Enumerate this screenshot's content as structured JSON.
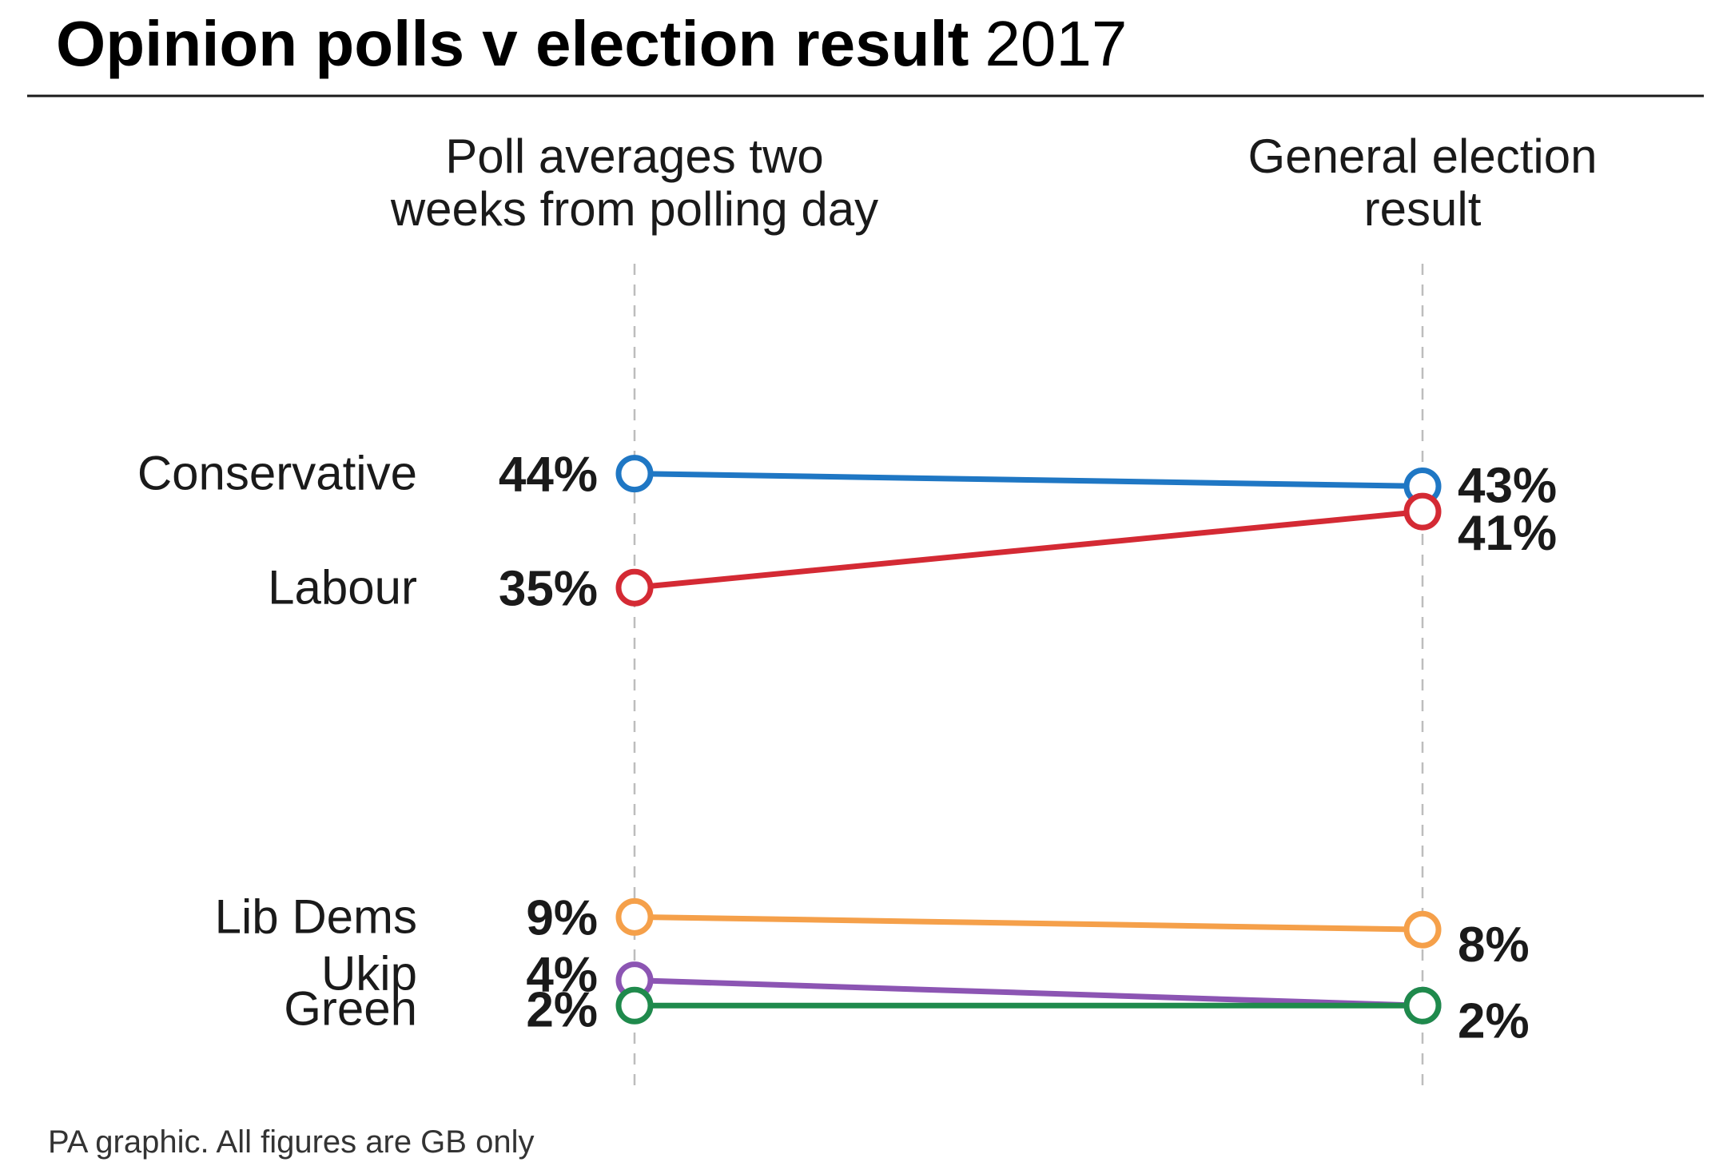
{
  "header": {
    "title_main": "Opinion polls v election result",
    "title_year": "2017"
  },
  "footer": {
    "source": "PA graphic. All figures are GB only"
  },
  "chart_data": {
    "type": "slope",
    "title": "Opinion polls v election result 2017",
    "columns": [
      [
        "Poll averages two",
        "weeks from polling day"
      ],
      [
        "General election",
        "result"
      ]
    ],
    "unit": "%",
    "series": [
      {
        "name": "Conservative",
        "values": [
          44,
          43
        ],
        "labels": [
          "44%",
          "43%"
        ],
        "color": "#1f77c4"
      },
      {
        "name": "Labour",
        "values": [
          35,
          41
        ],
        "labels": [
          "35%",
          "41%"
        ],
        "color": "#d42a34"
      },
      {
        "name": "Lib Dems",
        "values": [
          9,
          8
        ],
        "labels": [
          "9%",
          "8%"
        ],
        "color": "#f5a04a"
      },
      {
        "name": "Ukip",
        "values": [
          4,
          2
        ],
        "labels": [
          "4%",
          "2%"
        ],
        "color": "#8c55b3"
      },
      {
        "name": "Green",
        "values": [
          2,
          2
        ],
        "labels": [
          "2%",
          ""
        ],
        "color": "#1f8a4c"
      }
    ]
  }
}
